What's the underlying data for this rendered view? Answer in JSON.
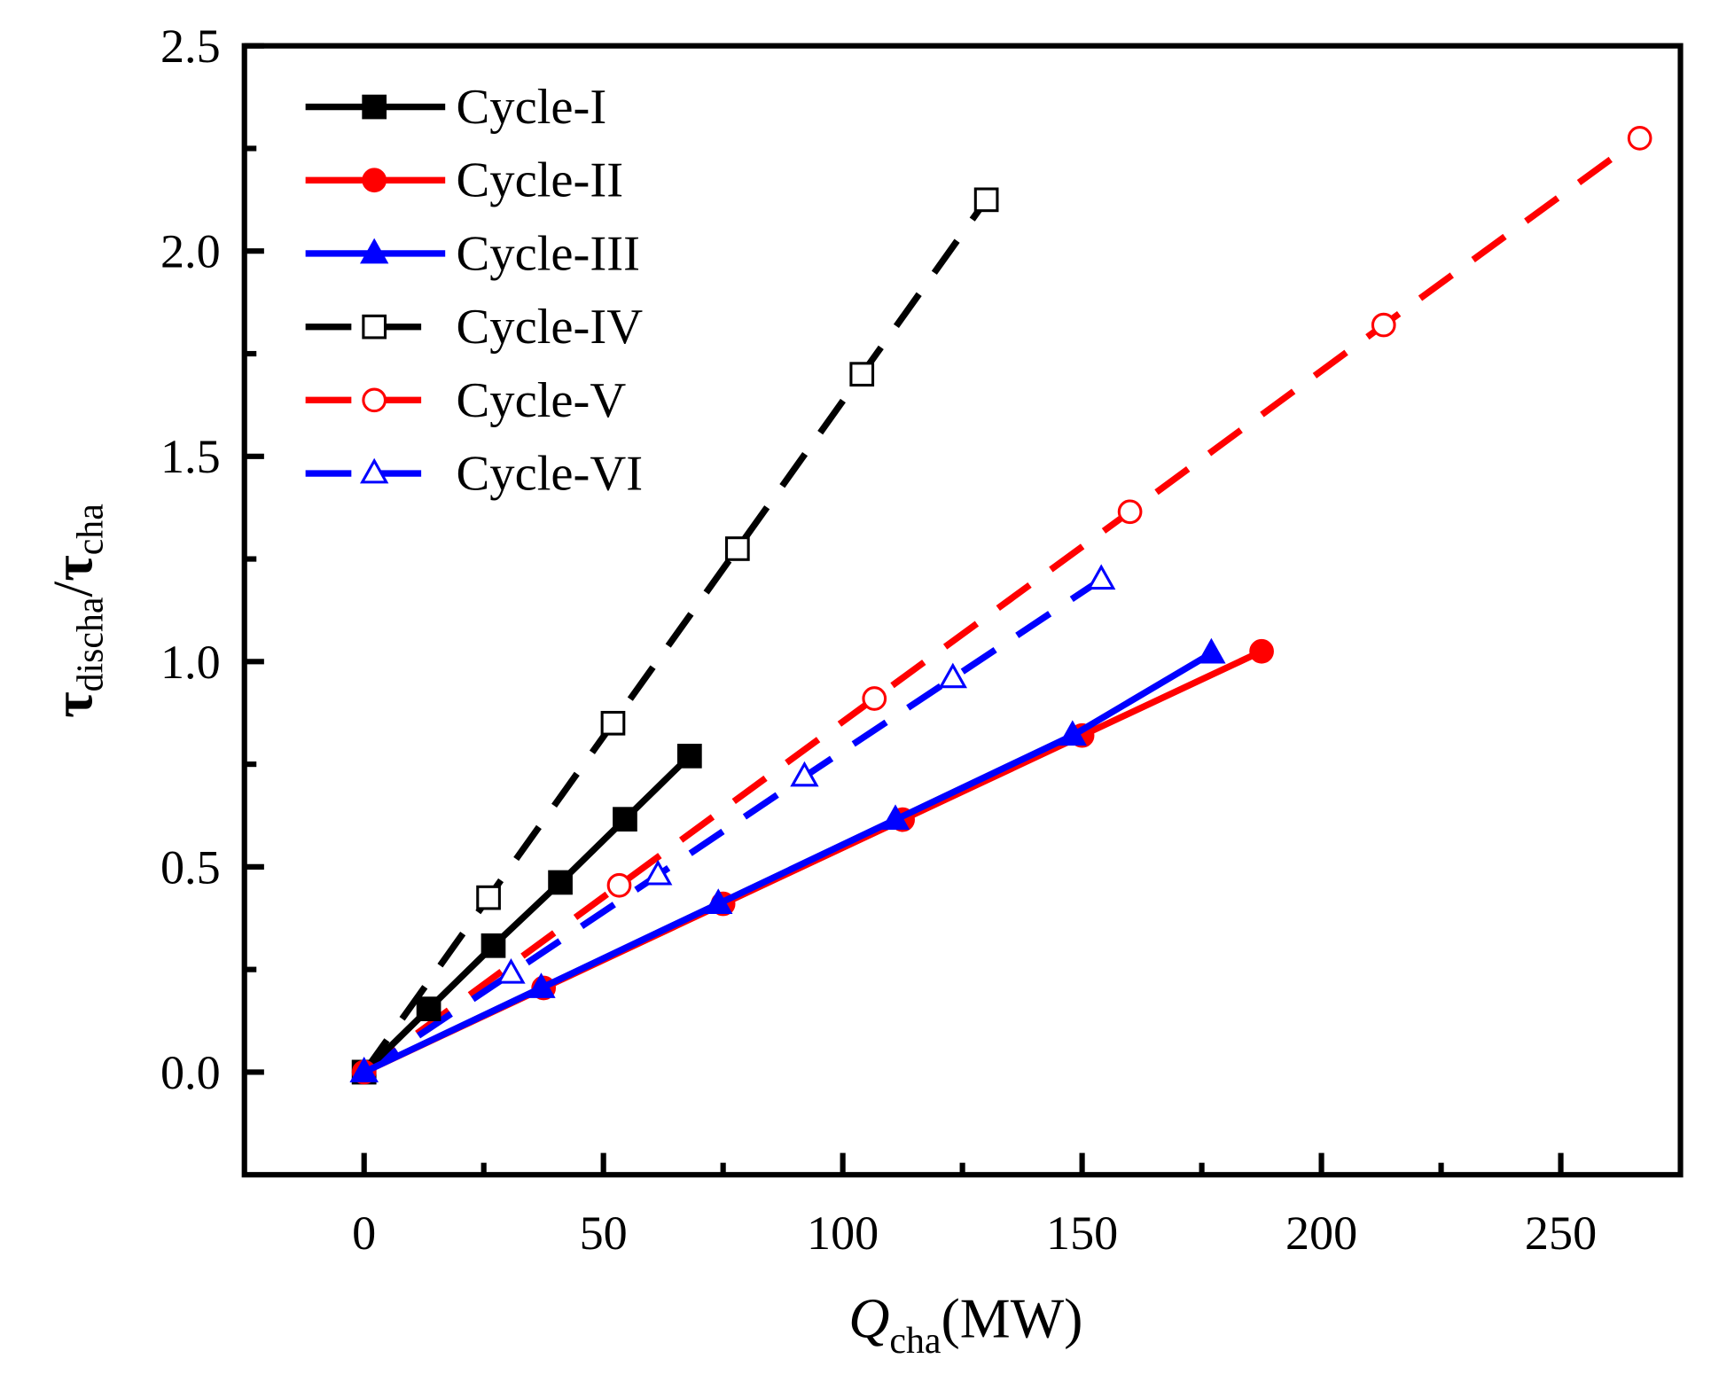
{
  "chart_data": {
    "type": "line",
    "title": "",
    "xlabel": "Q",
    "xlabel_sub": "cha",
    "xlabel_unit": "(MW)",
    "ylabel_num": "τ",
    "ylabel_num_sub": "discha",
    "ylabel_slash": "/",
    "ylabel_den": "τ",
    "ylabel_den_sub": "cha",
    "xlim": [
      -25,
      275
    ],
    "ylim": [
      -0.25,
      2.5
    ],
    "xticks": [
      0,
      50,
      100,
      150,
      200,
      250
    ],
    "xtick_labels": [
      "0",
      "50",
      "100",
      "150",
      "200",
      "250"
    ],
    "xminor": [
      25,
      75,
      125,
      175,
      225
    ],
    "yticks": [
      0,
      0.5,
      1.0,
      1.5,
      2.0,
      2.5
    ],
    "ytick_labels": [
      "0.0",
      "0.5",
      "1.0",
      "1.5",
      "2.0",
      "2.5"
    ],
    "yminor": [
      0.25,
      0.75,
      1.25,
      1.75,
      2.25
    ],
    "grid": false,
    "legend_position": "top-left",
    "series": [
      {
        "name": "Cycle-I",
        "color": "#000000",
        "dashed": false,
        "marker": "square",
        "filled": true,
        "x": [
          0,
          13.5,
          27,
          41,
          54.5,
          68
        ],
        "y": [
          0,
          0.154,
          0.308,
          0.462,
          0.616,
          0.77
        ]
      },
      {
        "name": "Cycle-II",
        "color": "#ff0000",
        "dashed": false,
        "marker": "circle",
        "filled": true,
        "x": [
          0,
          37.5,
          75,
          112.5,
          150,
          187.5
        ],
        "y": [
          0,
          0.205,
          0.41,
          0.615,
          0.82,
          1.025
        ]
      },
      {
        "name": "Cycle-III",
        "color": "#0000ff",
        "dashed": false,
        "marker": "triangle",
        "filled": true,
        "x": [
          0,
          37,
          74,
          111,
          148,
          177
        ],
        "y": [
          0,
          0.205,
          0.41,
          0.615,
          0.82,
          1.02
        ]
      },
      {
        "name": "Cycle-IV",
        "color": "#000000",
        "dashed": true,
        "marker": "square",
        "filled": false,
        "x": [
          0,
          26,
          52,
          78,
          104,
          130
        ],
        "y": [
          0,
          0.425,
          0.85,
          1.275,
          1.7,
          2.125
        ]
      },
      {
        "name": "Cycle-V",
        "color": "#ff0000",
        "dashed": true,
        "marker": "circle",
        "filled": false,
        "x": [
          0,
          53.3,
          106.6,
          160,
          213,
          266.5
        ],
        "y": [
          0,
          0.455,
          0.91,
          1.365,
          1.82,
          2.275
        ]
      },
      {
        "name": "Cycle-VI",
        "color": "#0000ff",
        "dashed": true,
        "marker": "triangle",
        "filled": false,
        "x": [
          0,
          30.7,
          61.4,
          92,
          123,
          154
        ],
        "y": [
          0,
          0.24,
          0.48,
          0.72,
          0.96,
          1.2
        ]
      }
    ]
  }
}
